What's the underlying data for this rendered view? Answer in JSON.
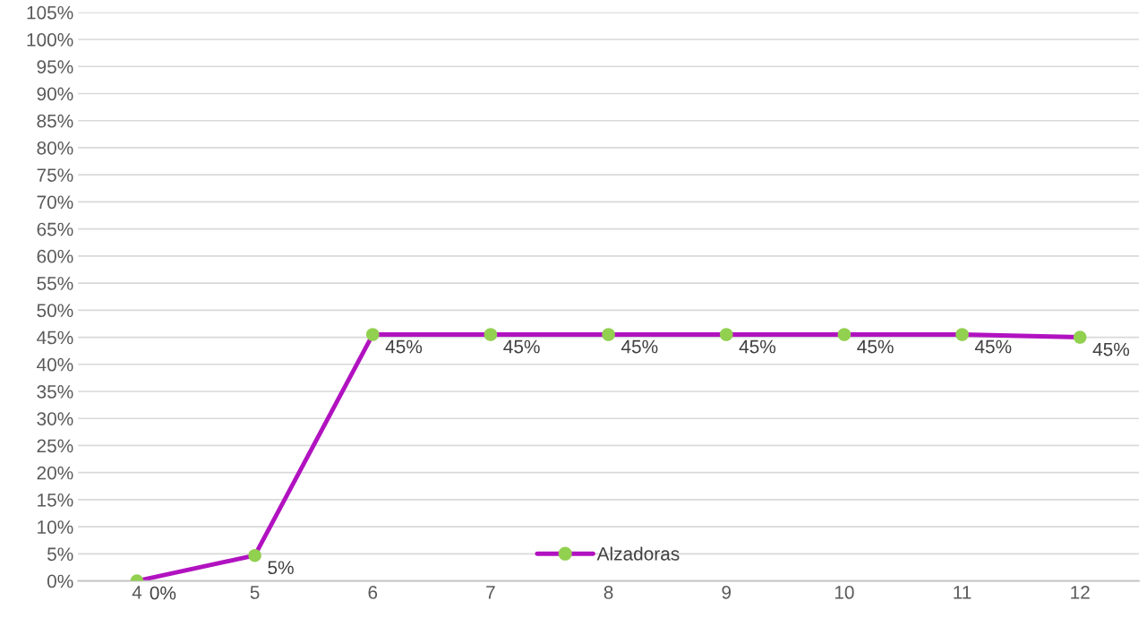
{
  "chart_data": {
    "type": "line",
    "categories": [
      "4",
      "5",
      "6",
      "7",
      "8",
      "9",
      "10",
      "11",
      "12"
    ],
    "series": [
      {
        "name": "Alzadoras",
        "color": "#b112c0",
        "colors": [
          "#92d050",
          "#92d050",
          "#92d050",
          "#92d050",
          "#92d050",
          "#92d050",
          "#92d050",
          "#92d050",
          "#92d050"
        ],
        "values": [
          0,
          4.7,
          45.5,
          45.5,
          45.5,
          45.5,
          45.5,
          45.5,
          45
        ],
        "value_labels": [
          "0%",
          "5%",
          "45%",
          "45%",
          "45%",
          "45%",
          "45%",
          "45%",
          "45%"
        ]
      }
    ],
    "ylim": [
      0,
      105
    ],
    "yticks": [
      {
        "value": 0,
        "label": "0%"
      },
      {
        "value": 5,
        "label": "5%"
      },
      {
        "value": 10,
        "label": "10%"
      },
      {
        "value": 15,
        "label": "15%"
      },
      {
        "value": 20,
        "label": "20%"
      },
      {
        "value": 25,
        "label": "25%"
      },
      {
        "value": 30,
        "label": "30%"
      },
      {
        "value": 35,
        "label": "35%"
      },
      {
        "value": 40,
        "label": "40%"
      },
      {
        "value": 45,
        "label": "45%"
      },
      {
        "value": 50,
        "label": "50%"
      },
      {
        "value": 55,
        "label": "55%"
      },
      {
        "value": 60,
        "label": "60%"
      },
      {
        "value": 65,
        "label": "65%"
      },
      {
        "value": 70,
        "label": "70%"
      },
      {
        "value": 75,
        "label": "75%"
      },
      {
        "value": 80,
        "label": "80%"
      },
      {
        "value": 85,
        "label": "85%"
      },
      {
        "value": 90,
        "label": "90%"
      },
      {
        "value": 95,
        "label": "95%"
      },
      {
        "value": 100,
        "label": "100%"
      },
      {
        "value": 105,
        "label": "105%"
      }
    ],
    "grid": "y",
    "legend": "bottom",
    "marker": "circle",
    "line_style": "solid"
  }
}
